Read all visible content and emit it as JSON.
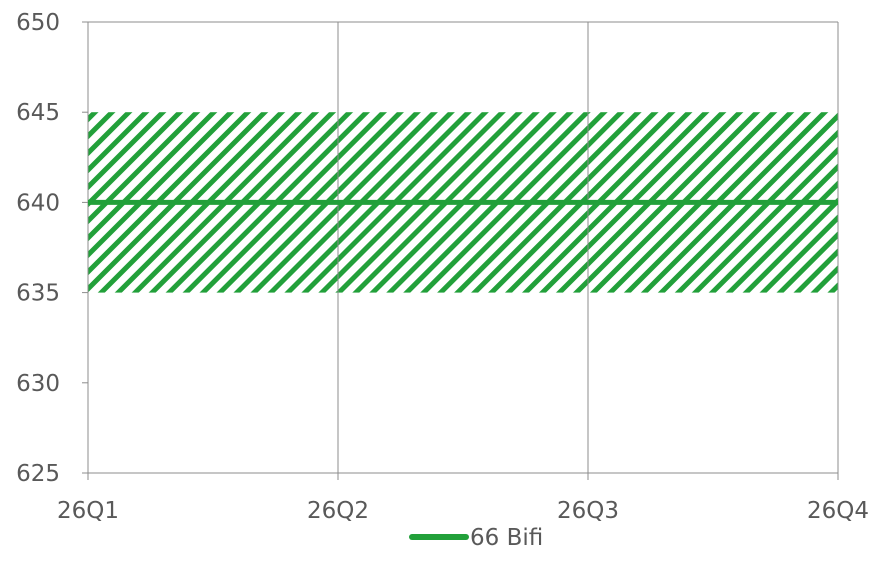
{
  "chart_data": {
    "type": "line",
    "categories": [
      "26Q1",
      "26Q2",
      "26Q3",
      "26Q4"
    ],
    "series": [
      {
        "name": "66 Bifi",
        "values": [
          640,
          640,
          640,
          640
        ],
        "color": "#22a03a"
      }
    ],
    "band": {
      "low": 635,
      "high": 645,
      "pattern": "diagonal-hatch",
      "color": "#22a03a"
    },
    "ylim": [
      625,
      650
    ],
    "yticks": [
      "625",
      "630",
      "635",
      "640",
      "645",
      "650"
    ],
    "xlabel": "",
    "ylabel": "",
    "grid": true,
    "legend": "bottom-center"
  },
  "colors": {
    "series": "#22a03a",
    "grid": "#8c8c8c",
    "text": "#595959"
  }
}
